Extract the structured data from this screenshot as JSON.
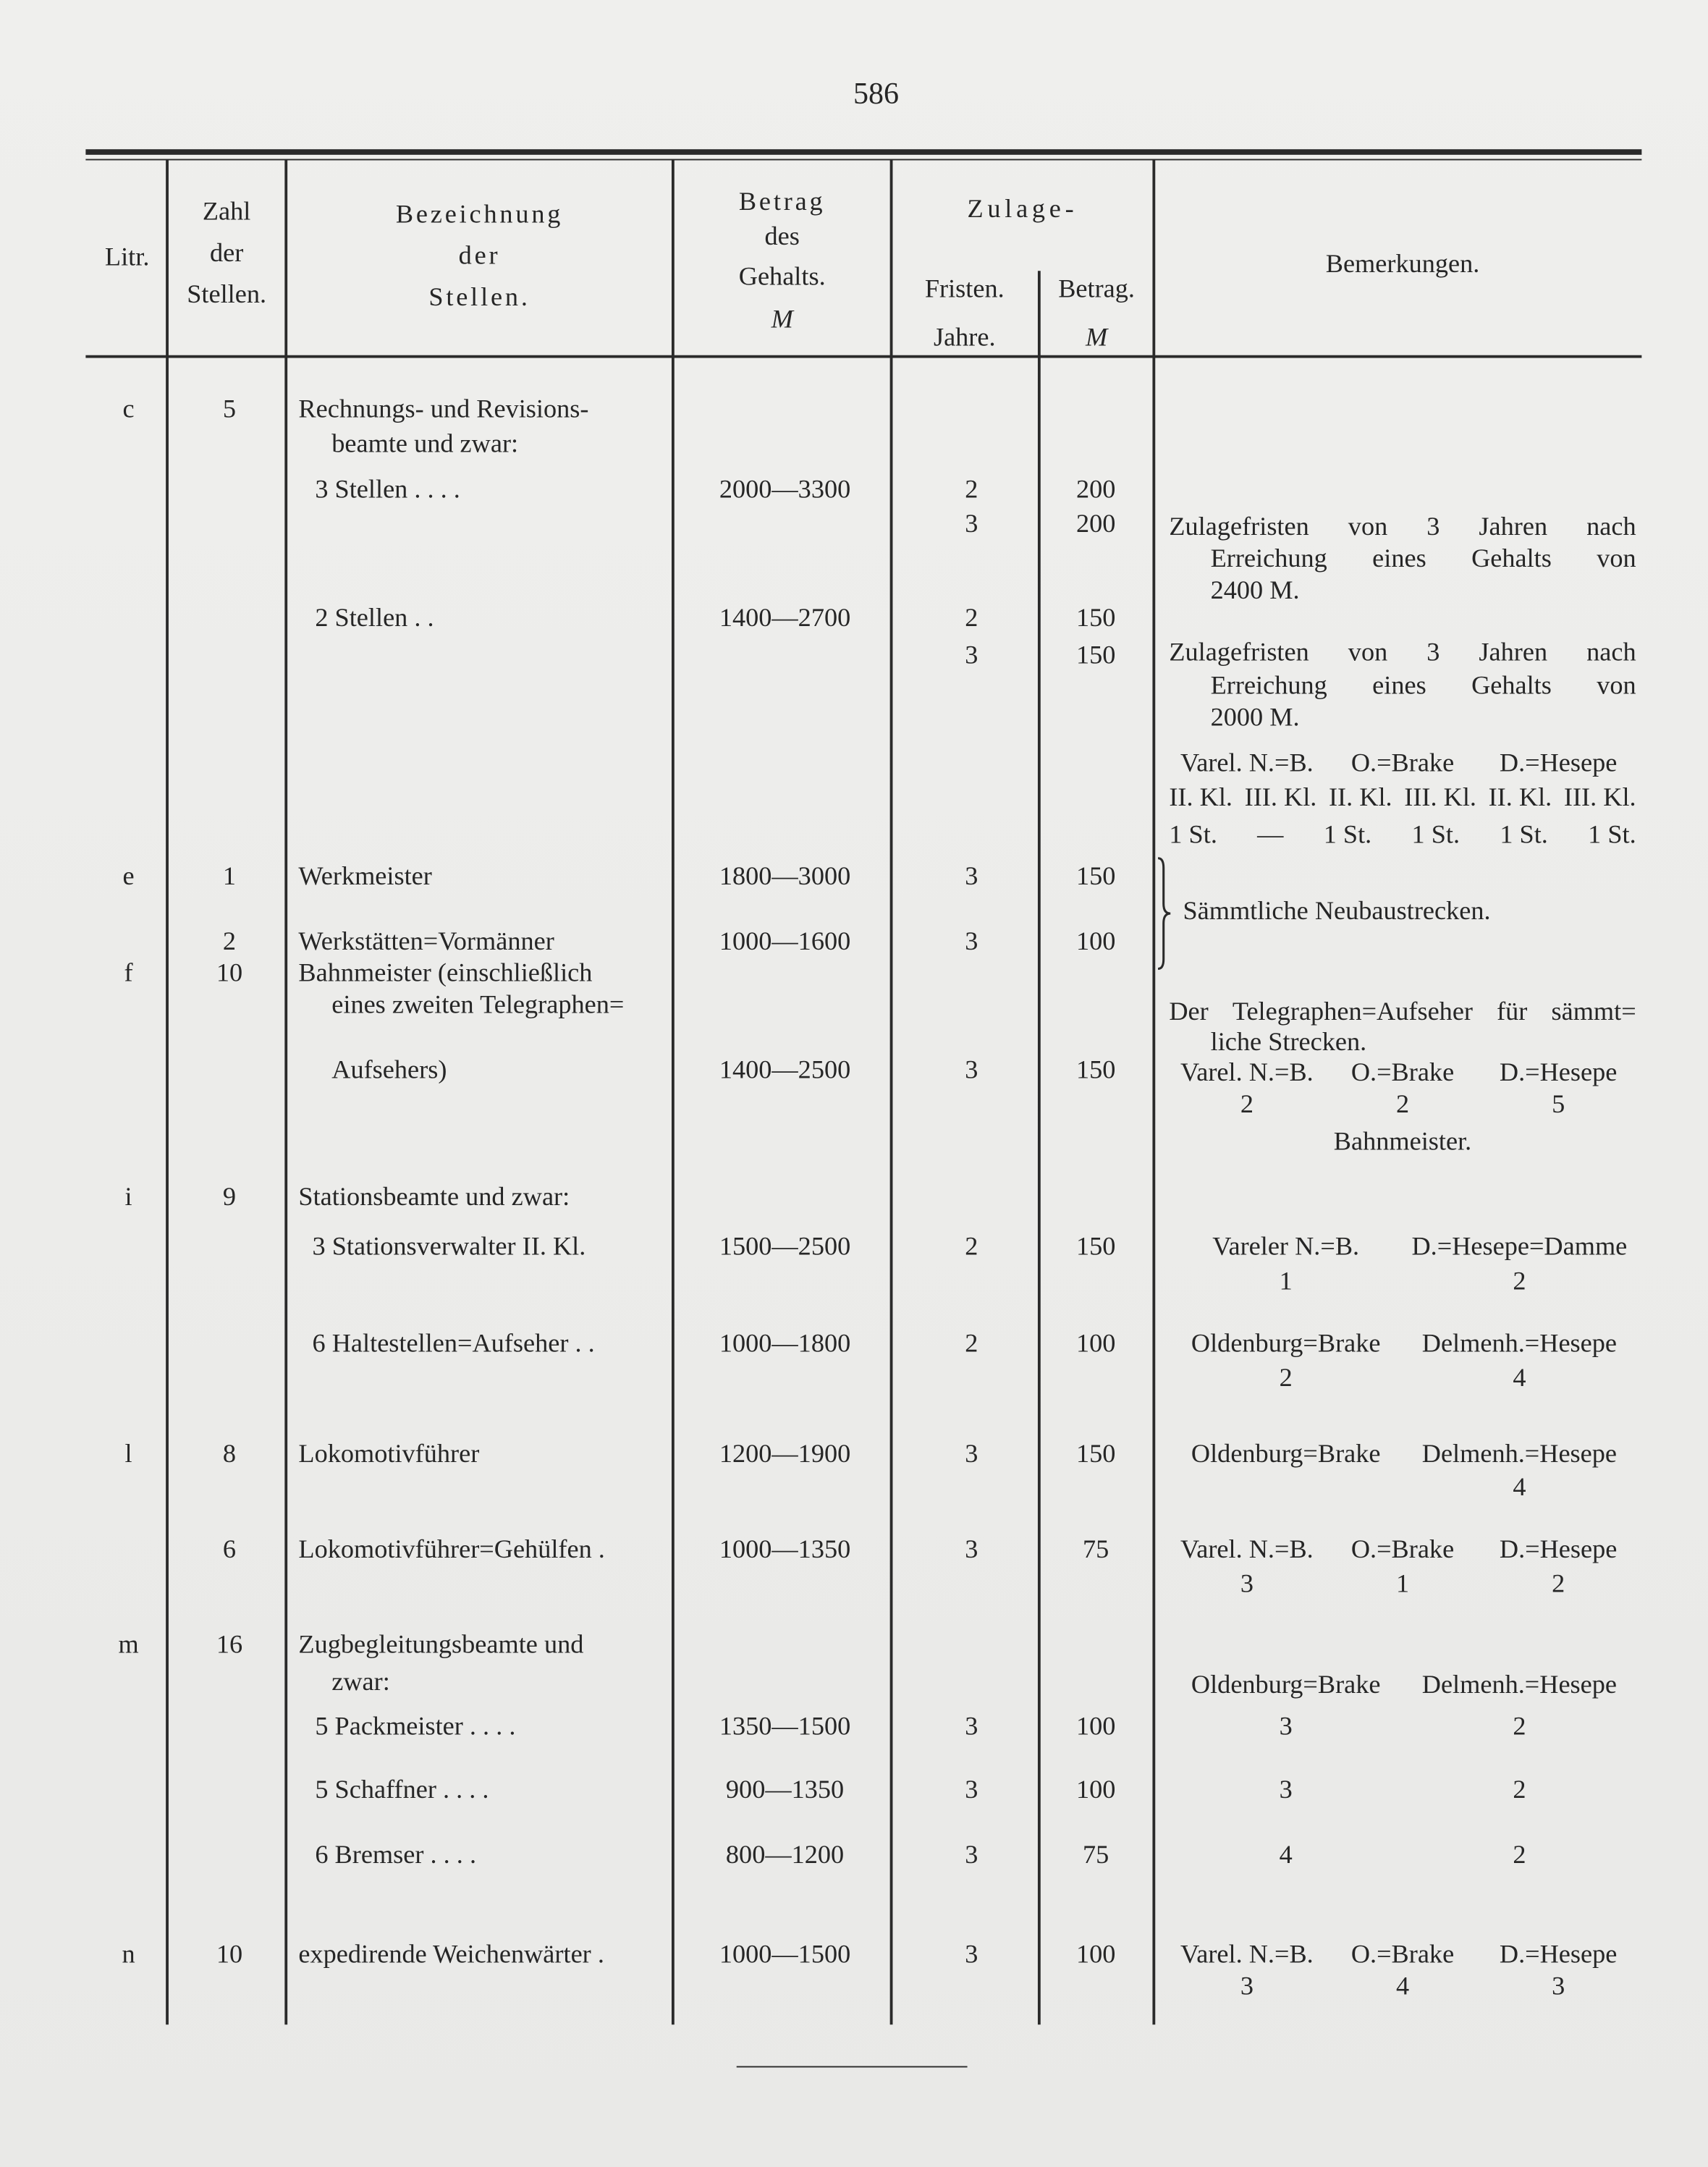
{
  "page_number": "586",
  "header": {
    "litr": "Litr.",
    "zahl": [
      "Zahl",
      "der",
      "Stellen."
    ],
    "bezeichnung": [
      "Bezeichnung",
      "der",
      "Stellen."
    ],
    "gehalt": [
      "Betrag",
      "des",
      "Gehalts.",
      "M"
    ],
    "zulage": "Zulage-",
    "fristen": [
      "Fristen.",
      "Jahre."
    ],
    "betrag": [
      "Betrag.",
      "M"
    ],
    "bemerkungen": "Bemerkungen."
  },
  "rows": [
    {
      "litr": "c",
      "zahl": "5",
      "bez": "Rechnungs- und Revisions-"
    },
    {
      "bez": "beamte und zwar:"
    },
    {
      "bez": "3 Stellen . . . .",
      "gehalt": "2000—3300",
      "fristen": "2",
      "betrag": "200"
    },
    {
      "fristen": "3",
      "betrag": "200"
    },
    {
      "bez": "2 Stellen . .",
      "gehalt": "1400—2700",
      "fristen": "2",
      "betrag": "150"
    },
    {
      "fristen": "3",
      "betrag": "150"
    },
    {
      "litr": "e",
      "zahl": "1",
      "bez": "Werkmeister",
      "gehalt": "1800—3000",
      "fristen": "3",
      "betrag": "150"
    },
    {
      "zahl": "2",
      "bez": "Werkstätten=Vormänner",
      "gehalt": "1000—1600",
      "fristen": "3",
      "betrag": "100"
    },
    {
      "litr": "f",
      "zahl": "10",
      "bez": "Bahnmeister (einschließlich"
    },
    {
      "bez": "eines zweiten Telegraphen="
    },
    {
      "bez": "Aufsehers)",
      "gehalt": "1400—2500",
      "fristen": "3",
      "betrag": "150"
    },
    {
      "litr": "i",
      "zahl": "9",
      "bez": "Stationsbeamte und zwar:"
    },
    {
      "bez": "3 Stationsverwalter II. Kl.",
      "gehalt": "1500—2500",
      "fristen": "2",
      "betrag": "150"
    },
    {
      "bez": "6 Haltestellen=Aufseher . .",
      "gehalt": "1000—1800",
      "fristen": "2",
      "betrag": "100"
    },
    {
      "litr": "l",
      "zahl": "8",
      "bez": "Lokomotivführer",
      "gehalt": "1200—1900",
      "fristen": "3",
      "betrag": "150"
    },
    {
      "zahl": "6",
      "bez": "Lokomotivführer=Gehülfen .",
      "gehalt": "1000—1350",
      "fristen": "3",
      "betrag": "75"
    },
    {
      "litr": "m",
      "zahl": "16",
      "bez": "Zugbegleitungsbeamte und"
    },
    {
      "bez": "zwar:"
    },
    {
      "bez": "5 Packmeister . . . .",
      "gehalt": "1350—1500",
      "fristen": "3",
      "betrag": "100"
    },
    {
      "bez": "5 Schaffner . . . .",
      "gehalt": "900—1350",
      "fristen": "3",
      "betrag": "100"
    },
    {
      "bez": "6 Bremser . . . .",
      "gehalt": "800—1200",
      "fristen": "3",
      "betrag": "75"
    },
    {
      "litr": "n",
      "zahl": "10",
      "bez": "expedirende Weichenwärter .",
      "gehalt": "1000—1500",
      "fristen": "3",
      "betrag": "100"
    }
  ],
  "remarks": [
    [
      "Zulagefristen",
      "von",
      "3",
      "Jahren",
      "nach"
    ],
    [
      "Erreichung",
      "eines",
      "Gehalts",
      "von"
    ],
    [
      "2400 M."
    ],
    [
      "Zulagefristen",
      "von",
      "3",
      "Jahren",
      "nach"
    ],
    [
      "Erreichung",
      "eines",
      "Gehalts",
      "von"
    ],
    [
      "2000 M."
    ],
    [
      "Varel. N.=B.",
      "O.=Brake",
      "D.=Hesepe"
    ],
    [
      "II. Kl.",
      "III. Kl.",
      "II. Kl.",
      "III. Kl.",
      "II. Kl.",
      "III. Kl."
    ],
    [
      "1 St.",
      "—",
      "1 St.",
      "1 St.",
      "1 St.",
      "1 St."
    ],
    [
      "Sämmtliche Neubaustrecken."
    ],
    [
      "Der",
      "Telegraphen=Aufseher",
      "für",
      "sämmt="
    ],
    [
      "liche Strecken."
    ],
    [
      "Varel. N.=B.",
      "O.=Brake",
      "D.=Hesepe"
    ],
    [
      "2",
      "2",
      "5"
    ],
    [
      "Bahnmeister."
    ],
    [
      "Vareler N.=B.",
      "D.=Hesepe=Damme"
    ],
    [
      "1",
      "2"
    ],
    [
      "Oldenburg=Brake",
      "Delmenh.=Hesepe"
    ],
    [
      "2",
      "4"
    ],
    [
      "Oldenburg=Brake",
      "Delmenh.=Hesepe"
    ],
    [
      "",
      "4"
    ],
    [
      "Varel. N.=B.",
      "O.=Brake",
      "D.=Hesepe"
    ],
    [
      "3",
      "1",
      "2"
    ],
    [
      "Oldenburg=Brake",
      "Delmenh.=Hesepe"
    ],
    [
      "3",
      "2"
    ],
    [
      "3",
      "2"
    ],
    [
      "4",
      "2"
    ],
    [
      "Varel. N.=B.",
      "O.=Brake",
      "D.=Hesepe"
    ],
    [
      "3",
      "4",
      "3"
    ]
  ]
}
